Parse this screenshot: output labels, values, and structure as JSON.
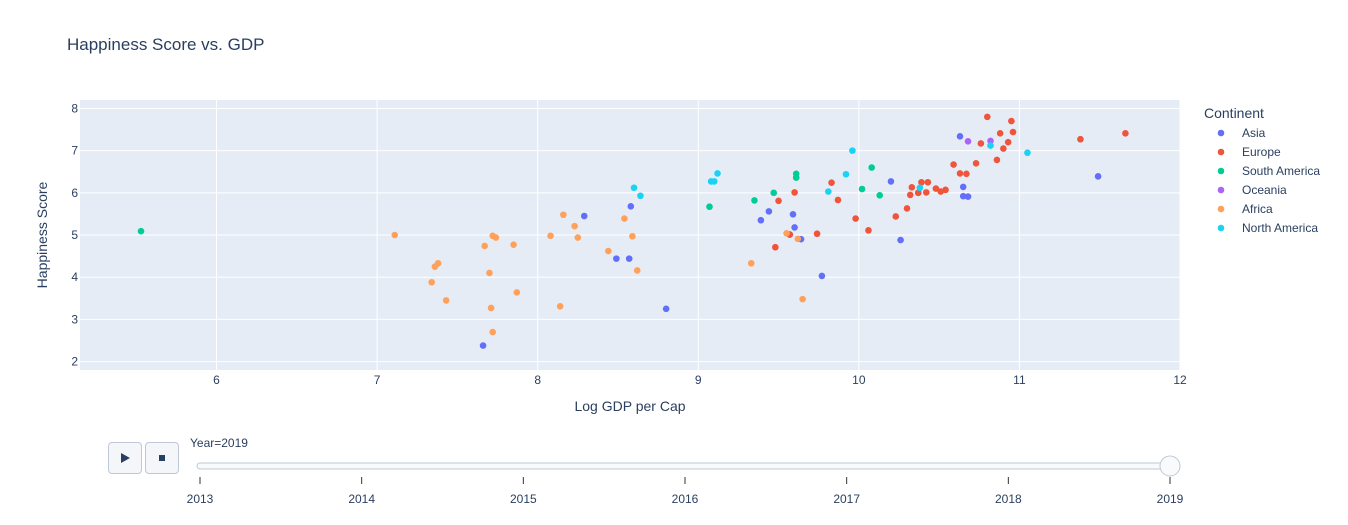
{
  "chart_data": {
    "type": "scatter",
    "title": "Happiness Score vs. GDP",
    "xlabel": "Log GDP per Cap",
    "ylabel": "Happiness Score",
    "xlim": [
      5.15,
      12.0
    ],
    "ylim": [
      1.8,
      8.2
    ],
    "xticks": [
      6,
      7,
      8,
      9,
      10,
      11,
      12
    ],
    "yticks": [
      2,
      3,
      4,
      5,
      6,
      7,
      8
    ],
    "grid": true,
    "legend_title": "Continent",
    "legend_position": "right",
    "series": [
      {
        "name": "Asia",
        "color": "#636efa",
        "points": [
          [
            7.66,
            2.38
          ],
          [
            8.29,
            5.45
          ],
          [
            8.49,
            4.44
          ],
          [
            8.57,
            4.44
          ],
          [
            8.58,
            5.68
          ],
          [
            8.8,
            3.25
          ],
          [
            9.39,
            5.35
          ],
          [
            9.44,
            5.56
          ],
          [
            9.57,
            5.01
          ],
          [
            9.59,
            5.49
          ],
          [
            9.6,
            5.18
          ],
          [
            9.64,
            4.9
          ],
          [
            9.77,
            4.03
          ],
          [
            10.2,
            6.27
          ],
          [
            10.26,
            4.88
          ],
          [
            10.37,
            6.0
          ],
          [
            10.63,
            7.34
          ],
          [
            10.65,
            6.14
          ],
          [
            10.65,
            5.92
          ],
          [
            10.68,
            5.91
          ],
          [
            11.49,
            6.39
          ]
        ]
      },
      {
        "name": "Europe",
        "color": "#ef553b",
        "points": [
          [
            9.48,
            4.71
          ],
          [
            9.5,
            5.81
          ],
          [
            9.57,
            5.01
          ],
          [
            9.6,
            6.01
          ],
          [
            9.74,
            5.03
          ],
          [
            9.83,
            6.24
          ],
          [
            9.87,
            5.83
          ],
          [
            9.98,
            5.39
          ],
          [
            10.06,
            5.11
          ],
          [
            10.23,
            5.44
          ],
          [
            10.3,
            5.63
          ],
          [
            10.32,
            5.95
          ],
          [
            10.33,
            6.13
          ],
          [
            10.37,
            6.0
          ],
          [
            10.39,
            6.25
          ],
          [
            10.42,
            6.01
          ],
          [
            10.43,
            6.25
          ],
          [
            10.48,
            6.1
          ],
          [
            10.51,
            6.03
          ],
          [
            10.54,
            6.07
          ],
          [
            10.59,
            6.67
          ],
          [
            10.63,
            6.46
          ],
          [
            10.67,
            6.45
          ],
          [
            10.73,
            6.7
          ],
          [
            10.76,
            7.17
          ],
          [
            10.8,
            7.8
          ],
          [
            10.86,
            6.78
          ],
          [
            10.88,
            7.41
          ],
          [
            10.9,
            7.05
          ],
          [
            10.93,
            7.2
          ],
          [
            10.95,
            7.7
          ],
          [
            10.96,
            7.44
          ],
          [
            11.38,
            7.27
          ],
          [
            11.66,
            7.41
          ]
        ]
      },
      {
        "name": "South America",
        "color": "#00cc96",
        "points": [
          [
            5.53,
            5.09
          ],
          [
            9.07,
            5.67
          ],
          [
            9.35,
            5.82
          ],
          [
            9.47,
            6.0
          ],
          [
            9.61,
            6.36
          ],
          [
            9.61,
            6.45
          ],
          [
            10.02,
            6.09
          ],
          [
            10.08,
            6.6
          ],
          [
            10.13,
            5.94
          ]
        ]
      },
      {
        "name": "Oceania",
        "color": "#ab63fa",
        "points": [
          [
            10.68,
            7.22
          ],
          [
            10.82,
            7.23
          ]
        ]
      },
      {
        "name": "Africa",
        "color": "#ffa15a",
        "points": [
          [
            7.11,
            5.0
          ],
          [
            7.34,
            3.88
          ],
          [
            7.36,
            4.25
          ],
          [
            7.38,
            4.33
          ],
          [
            7.43,
            3.45
          ],
          [
            7.67,
            4.74
          ],
          [
            7.7,
            4.1
          ],
          [
            7.71,
            3.27
          ],
          [
            7.72,
            2.7
          ],
          [
            7.72,
            4.98
          ],
          [
            7.74,
            4.94
          ],
          [
            7.85,
            4.77
          ],
          [
            7.87,
            3.64
          ],
          [
            8.08,
            4.98
          ],
          [
            8.14,
            3.31
          ],
          [
            8.16,
            5.48
          ],
          [
            8.23,
            5.21
          ],
          [
            8.25,
            4.94
          ],
          [
            8.44,
            4.62
          ],
          [
            8.54,
            5.39
          ],
          [
            8.59,
            4.97
          ],
          [
            8.62,
            4.16
          ],
          [
            9.33,
            4.33
          ],
          [
            9.55,
            5.04
          ],
          [
            9.62,
            4.91
          ],
          [
            9.65,
            3.48
          ]
        ]
      },
      {
        "name": "North America",
        "color": "#19d3f3",
        "points": [
          [
            8.6,
            6.12
          ],
          [
            8.64,
            5.93
          ],
          [
            9.08,
            6.27
          ],
          [
            9.1,
            6.27
          ],
          [
            9.12,
            6.46
          ],
          [
            9.81,
            6.03
          ],
          [
            9.92,
            6.44
          ],
          [
            9.96,
            7.0
          ],
          [
            10.38,
            6.12
          ],
          [
            10.82,
            7.12
          ],
          [
            11.05,
            6.95
          ]
        ]
      }
    ]
  },
  "slider": {
    "current_label": "Year=2019",
    "steps": [
      "2013",
      "2014",
      "2015",
      "2016",
      "2017",
      "2018",
      "2019"
    ],
    "current_index": 6,
    "play_icon": "play-icon",
    "stop_icon": "stop-icon"
  }
}
